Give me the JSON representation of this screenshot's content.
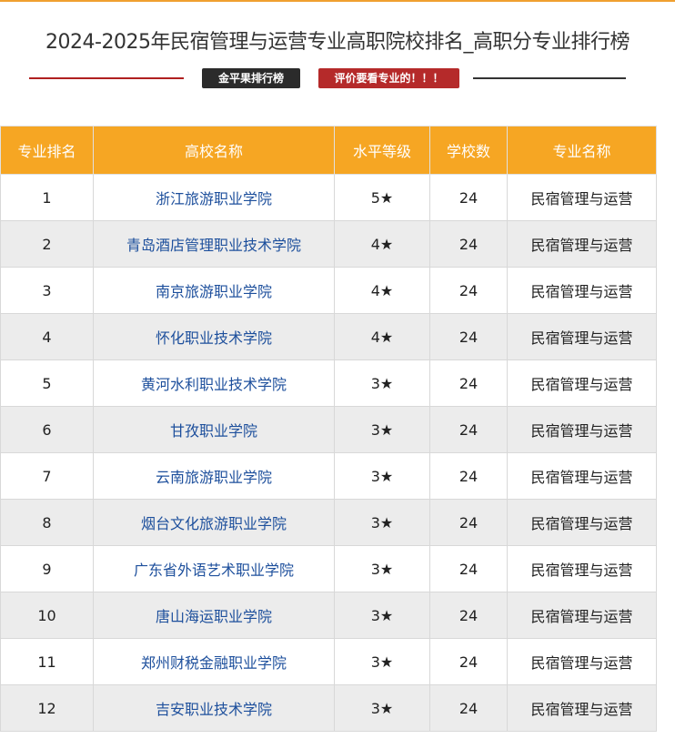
{
  "header": {
    "title": "2024-2025年民宿管理与运营专业高职院校排名_高职分专业排行榜",
    "badge_left": "金平果排行榜",
    "badge_right": "评价要看专业的！！！"
  },
  "table": {
    "columns": [
      "专业排名",
      "高校名称",
      "水平等级",
      "学校数",
      "专业名称"
    ],
    "rows": [
      [
        1,
        "浙江旅游职业学院",
        "5★",
        24,
        "民宿管理与运营"
      ],
      [
        2,
        "青岛酒店管理职业技术学院",
        "4★",
        24,
        "民宿管理与运营"
      ],
      [
        3,
        "南京旅游职业学院",
        "4★",
        24,
        "民宿管理与运营"
      ],
      [
        4,
        "怀化职业技术学院",
        "4★",
        24,
        "民宿管理与运营"
      ],
      [
        5,
        "黄河水利职业技术学院",
        "3★",
        24,
        "民宿管理与运营"
      ],
      [
        6,
        "甘孜职业学院",
        "3★",
        24,
        "民宿管理与运营"
      ],
      [
        7,
        "云南旅游职业学院",
        "3★",
        24,
        "民宿管理与运营"
      ],
      [
        8,
        "烟台文化旅游职业学院",
        "3★",
        24,
        "民宿管理与运营"
      ],
      [
        9,
        "广东省外语艺术职业学院",
        "3★",
        24,
        "民宿管理与运营"
      ],
      [
        10,
        "唐山海运职业学院",
        "3★",
        24,
        "民宿管理与运营"
      ],
      [
        11,
        "郑州财税金融职业学院",
        "3★",
        24,
        "民宿管理与运营"
      ],
      [
        12,
        "吉安职业技术学院",
        "3★",
        24,
        "民宿管理与运营"
      ]
    ]
  }
}
